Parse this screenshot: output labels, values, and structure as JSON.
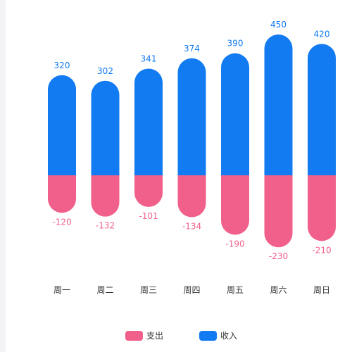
{
  "chart_data": {
    "type": "bar",
    "categories": [
      "周一",
      "周二",
      "周三",
      "周四",
      "周五",
      "周六",
      "周日"
    ],
    "series": [
      {
        "name": "收入",
        "values": [
          320,
          302,
          341,
          374,
          390,
          450,
          420
        ],
        "color": "#127bf1"
      },
      {
        "name": "支出",
        "values": [
          -120,
          -132,
          -101,
          -134,
          -190,
          -230,
          -210
        ],
        "color": "#f0608a"
      }
    ],
    "ylim": [
      -240,
      460
    ],
    "grid": false,
    "legend": [
      "支出",
      "收入"
    ],
    "legend_position": "bottom-center",
    "stacked": true,
    "bar_shape": "rounded"
  }
}
